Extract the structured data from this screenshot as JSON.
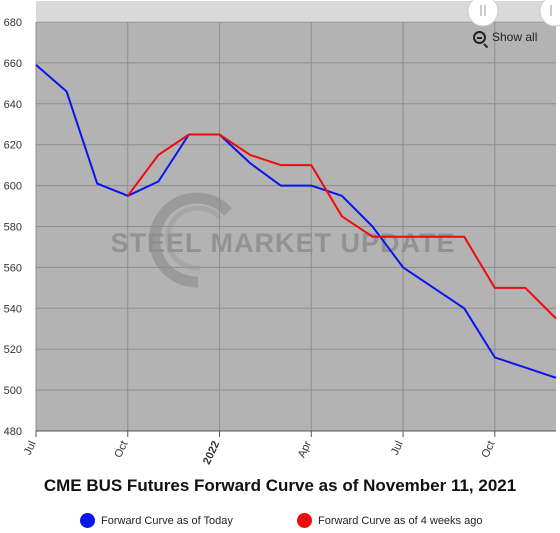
{
  "chart_data": {
    "type": "line",
    "title": "CME BUS Futures Forward Curve as of November 11, 2021",
    "xlabel": "",
    "ylabel": "",
    "ylim": [
      480,
      680
    ],
    "yticks": [
      480,
      500,
      520,
      540,
      560,
      580,
      600,
      620,
      640,
      660,
      680
    ],
    "x": [
      "2021-07",
      "2021-08",
      "2021-09",
      "2021-10",
      "2021-11",
      "2021-12",
      "2022-01",
      "2022-02",
      "2022-03",
      "2022-04",
      "2022-05",
      "2022-06",
      "2022-07",
      "2022-08",
      "2022-09",
      "2022-10",
      "2022-11",
      "2022-12"
    ],
    "xticks": [
      {
        "label": "Jul",
        "x": "2021-07"
      },
      {
        "label": "Oct",
        "x": "2021-10"
      },
      {
        "label": "2022",
        "x": "2022-01",
        "bold": true
      },
      {
        "label": "Apr",
        "x": "2022-04"
      },
      {
        "label": "Jul",
        "x": "2022-07"
      },
      {
        "label": "Oct",
        "x": "2022-10"
      }
    ],
    "grid": true,
    "legend_position": "bottom",
    "series": [
      {
        "name": "Forward Curve as of Today",
        "color": "#0a14f0",
        "values": [
          659,
          646,
          601,
          595,
          602,
          625,
          625,
          611,
          600,
          600,
          595,
          580,
          560,
          null,
          540,
          516,
          511,
          506
        ]
      },
      {
        "name": "Forward Curve as of 4 weeks ago",
        "color": "#f00a0a",
        "values": [
          null,
          null,
          null,
          595,
          615,
          625,
          625,
          615,
          610,
          610,
          585,
          575,
          575,
          null,
          575,
          550,
          550,
          535
        ]
      }
    ]
  },
  "watermark": {
    "text": "STEEL MARKET UPDATE"
  },
  "controls": {
    "show_all": "Show all",
    "zoom_icon": "zoom-out-icon",
    "handle_icon": "drag-handle-icon"
  }
}
